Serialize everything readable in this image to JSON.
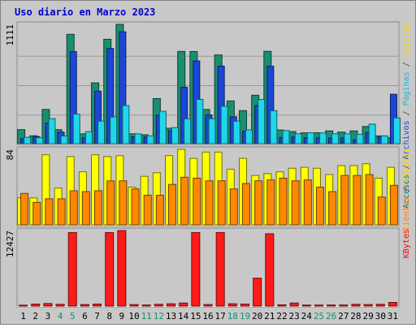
{
  "chart_data": {
    "type": "bar",
    "title": "Uso diario en Marzo 2023",
    "categories": [
      "1",
      "2",
      "3",
      "4",
      "5",
      "6",
      "7",
      "8",
      "9",
      "10",
      "11",
      "12",
      "13",
      "14",
      "15",
      "16",
      "17",
      "18",
      "19",
      "20",
      "21",
      "22",
      "23",
      "24",
      "25",
      "26",
      "27",
      "28",
      "29",
      "30",
      "31"
    ],
    "weekend_days": [
      "4",
      "5",
      "11",
      "12",
      "18",
      "19",
      "25",
      "26"
    ],
    "panels": [
      {
        "id": "hits",
        "max_label": "1111",
        "ylim": [
          0,
          1111
        ],
        "right_labels": [
          {
            "text": "Accesos",
            "color": "#0f7a5a"
          },
          {
            "text": " / ",
            "color": "#404040"
          },
          {
            "text": "Archivos",
            "color": "#1c47d6"
          },
          {
            "text": " / ",
            "color": "#404040"
          },
          {
            "text": "Páginas",
            "color": "#1ab6d6"
          },
          {
            "text": " / ",
            "color": "#404040"
          },
          {
            "text": "Visitas",
            "color": "#ffd700"
          }
        ],
        "series": [
          {
            "name": "Accesos",
            "color": "#1a8f6f",
            "values": [
              131,
              74,
              319,
              131,
              1018,
              92,
              566,
              972,
              1111,
              92,
              83,
              420,
              144,
              859,
              858,
              319,
              826,
              398,
              308,
              451,
              860,
              128,
              113,
              101,
              102,
              119,
              108,
              119,
              160,
              73,
              55
            ]
          },
          {
            "name": "Archivos",
            "color": "#1c47d6",
            "values": [
              47,
              66,
              191,
              108,
              857,
              55,
              489,
              887,
              1042,
              64,
              62,
              266,
              121,
              525,
              770,
              267,
              722,
              250,
              117,
              355,
              721,
              58,
              62,
              55,
              55,
              53,
              55,
              35,
              104,
              63,
              460
            ]
          },
          {
            "name": "Páginas",
            "color": "#21d6ea",
            "values": [
              60,
              56,
              233,
              72,
              276,
              112,
              210,
              248,
              355,
              92,
              73,
              302,
              150,
              232,
              412,
              233,
              348,
              210,
              128,
              412,
              307,
              122,
              92,
              102,
              100,
              92,
              92,
              88,
              182,
              73,
              240
            ]
          }
        ]
      },
      {
        "id": "visits",
        "max_label": "84",
        "ylim": [
          0,
          84
        ],
        "right_labels": [
          {
            "text": "Clientes",
            "color": "#ff7f0e"
          },
          {
            "text": " / ",
            "color": "#404040"
          },
          {
            "text": "Visitas",
            "color": "#ffd700"
          }
        ],
        "series": [
          {
            "name": "Visitas",
            "color": "#ffff00",
            "values": [
              30,
              30,
              78,
              41,
              76,
              59,
              78,
              76,
              77,
              42,
              54,
              58,
              77,
              84,
              74,
              81,
              81,
              62,
              74,
              55,
              57,
              59,
              63,
              64,
              63,
              56,
              66,
              66,
              68,
              52,
              64
            ]
          },
          {
            "name": "Clientes",
            "color": "#ff8800",
            "values": [
              35,
              25,
              29,
              29,
              38,
              37,
              38,
              49,
              49,
              40,
              33,
              33,
              45,
              53,
              52,
              49,
              49,
              40,
              46,
              49,
              50,
              52,
              49,
              50,
              42,
              37,
              55,
              55,
              56,
              31,
              44
            ]
          }
        ]
      },
      {
        "id": "kbytes",
        "max_label": "12427",
        "ylim": [
          0,
          12427
        ],
        "right_labels": [
          {
            "text": "KBytes",
            "color": "#ff0000"
          }
        ],
        "series": [
          {
            "name": "KBytes",
            "color": "#ff1a1a",
            "values": [
              150,
              330,
              420,
              290,
              12100,
              250,
              330,
              12100,
              12427,
              250,
              180,
              290,
              380,
              500,
              12100,
              250,
              12100,
              380,
              330,
              4600,
              11900,
              200,
              500,
              170,
              170,
              180,
              180,
              290,
              250,
              290,
              600
            ]
          }
        ]
      }
    ]
  }
}
